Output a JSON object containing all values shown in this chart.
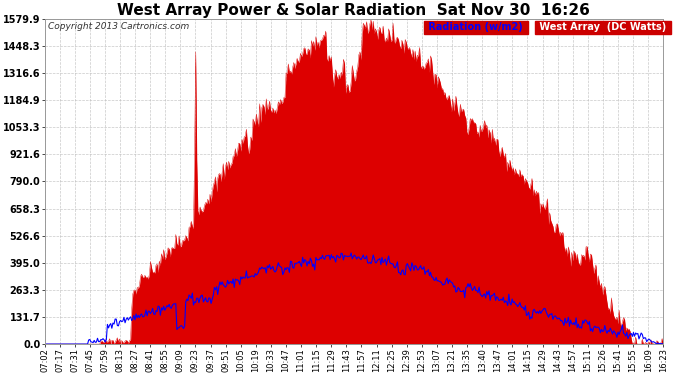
{
  "title": "West Array Power & Solar Radiation  Sat Nov 30  16:26",
  "copyright": "Copyright 2013 Cartronics.com",
  "background_color": "#ffffff",
  "plot_bg_color": "#ffffff",
  "grid_color": "#bbbbbb",
  "yticks": [
    0.0,
    131.7,
    263.3,
    395.0,
    526.6,
    658.3,
    790.0,
    921.6,
    1053.3,
    1184.9,
    1316.6,
    1448.3,
    1579.9
  ],
  "ymax": 1579.9,
  "fill_color": "#dd0000",
  "line_color": "#0000ff",
  "title_fontsize": 11,
  "copyright_fontsize": 6.5,
  "legend_fontsize": 7,
  "tick_fontsize": 6,
  "ytick_fontsize": 7,
  "x_labels": [
    "07:02",
    "07:17",
    "07:31",
    "07:45",
    "07:59",
    "08:13",
    "08:27",
    "08:41",
    "08:55",
    "09:09",
    "09:23",
    "09:37",
    "09:51",
    "10:05",
    "10:19",
    "10:33",
    "10:47",
    "11:01",
    "11:15",
    "11:29",
    "11:43",
    "11:57",
    "12:11",
    "12:25",
    "12:39",
    "12:53",
    "13:07",
    "13:21",
    "13:35",
    "13:40",
    "13:47",
    "14:01",
    "14:15",
    "14:29",
    "14:43",
    "14:57",
    "15:11",
    "15:26",
    "15:41",
    "15:55",
    "16:09",
    "16:23"
  ]
}
